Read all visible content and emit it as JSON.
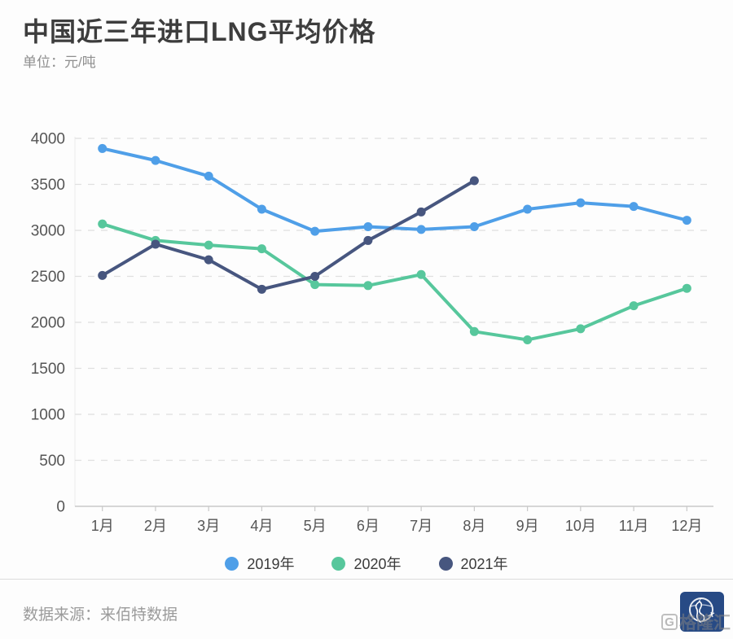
{
  "header": {
    "title": "中国近三年进口LNG平均价格",
    "unit_label": "单位：元/吨"
  },
  "chart_data": {
    "type": "line",
    "title": "中国近三年进口LNG平均价格",
    "xlabel": "",
    "ylabel": "元/吨",
    "categories": [
      "1月",
      "2月",
      "3月",
      "4月",
      "5月",
      "6月",
      "7月",
      "8月",
      "9月",
      "10月",
      "11月",
      "12月"
    ],
    "y_ticks": [
      0,
      500,
      1000,
      1500,
      2000,
      2500,
      3000,
      3500,
      4000
    ],
    "ylim": [
      0,
      4000
    ],
    "grid": "horizontal-dashed",
    "legend_position": "bottom",
    "series": [
      {
        "name": "2019年",
        "color": "#4f9fe8",
        "values": [
          3890,
          3760,
          3590,
          3230,
          2990,
          3040,
          3010,
          3040,
          3230,
          3300,
          3260,
          3110
        ]
      },
      {
        "name": "2020年",
        "color": "#57c79c",
        "values": [
          3070,
          2890,
          2840,
          2800,
          2410,
          2400,
          2520,
          1900,
          1810,
          1930,
          2180,
          2370
        ]
      },
      {
        "name": "2021年",
        "color": "#47567f",
        "values": [
          2510,
          2850,
          2680,
          2360,
          2500,
          2890,
          3200,
          3540
        ]
      }
    ]
  },
  "footer": {
    "source_label": "数据来源：来佰特数据",
    "brand_initial": "G",
    "brand_watermark": "格隆汇"
  },
  "colors": {
    "axis": "#c9c9c9",
    "grid": "#e0e0e0",
    "tick_text": "#555555",
    "title_text": "#3d3d3d",
    "muted_text": "#8f8f8f",
    "brand_blue": "#274a85"
  }
}
